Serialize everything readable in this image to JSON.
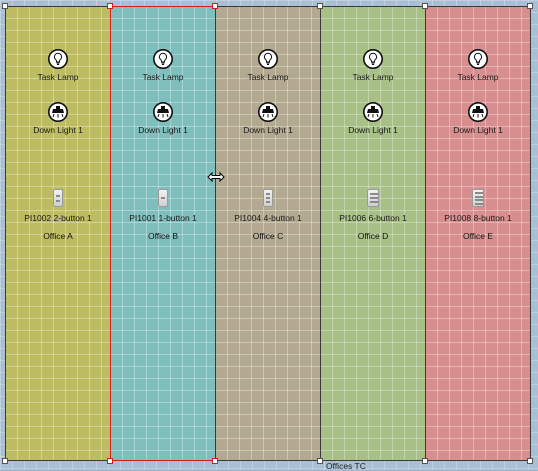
{
  "rooms": [
    {
      "name": "Office A",
      "color": "#bdbc62",
      "devices": [
        "Task Lamp",
        "Down Light 1",
        "PI1002 2-button 1"
      ]
    },
    {
      "name": "Office B",
      "color": "#7ebfbd",
      "devices": [
        "Task Lamp",
        "Down Light 1",
        "PI1001 1-button 1"
      ]
    },
    {
      "name": "Office C",
      "color": "#b3a991",
      "devices": [
        "Task Lamp",
        "Down Light 1",
        "PI1004 4-button 1"
      ]
    },
    {
      "name": "Office D",
      "color": "#a7c085",
      "devices": [
        "Task Lamp",
        "Down Light 1",
        "PI1006 6-button 1"
      ]
    },
    {
      "name": "Office E",
      "color": "#d68e8e",
      "devices": [
        "Task Lamp",
        "Down Light 1",
        "PI1008 8-button 1"
      ]
    }
  ],
  "selected_room": "Office B",
  "outer_area_label": "Offices TC",
  "icons": {
    "task_lamp": "bulb-icon",
    "down_light": "downlight-icon",
    "keypad": "keypad-switch-icon",
    "cursor": "resize-horizontal-cursor-icon"
  }
}
